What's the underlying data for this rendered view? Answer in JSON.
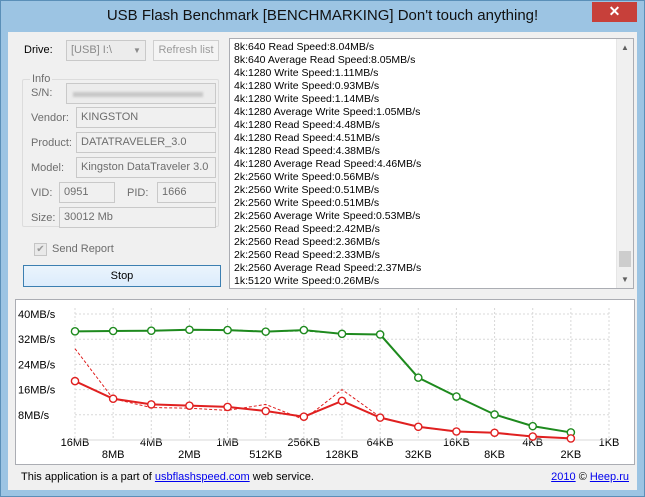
{
  "window": {
    "title": "USB Flash Benchmark [BENCHMARKING] Don't touch anything!",
    "close_glyph": "✕"
  },
  "drive": {
    "label": "Drive:",
    "value": "[USB] I:\\",
    "refresh_label": "Refresh list"
  },
  "info": {
    "group_title": "Info",
    "sn_label": "S/N:",
    "vendor_label": "Vendor:",
    "vendor": "KINGSTON",
    "product_label": "Product:",
    "product": "DATATRAVELER_3.0",
    "model_label": "Model:",
    "model": "Kingston DataTraveler 3.0",
    "vid_label": "VID:",
    "vid": "0951",
    "pid_label": "PID:",
    "pid": "1666",
    "size_label": "Size:",
    "size": "30012 Mb"
  },
  "send_report": {
    "label": "Send Report",
    "checked": true
  },
  "stop_label": "Stop",
  "log": [
    "8k:640 Read Speed:8.04MB/s",
    "8k:640 Average Read Speed:8.05MB/s",
    "4k:1280 Write Speed:1.11MB/s",
    "4k:1280 Write Speed:0.93MB/s",
    "4k:1280 Write Speed:1.14MB/s",
    "4k:1280 Average Write Speed:1.05MB/s",
    "4k:1280 Read Speed:4.48MB/s",
    "4k:1280 Read Speed:4.51MB/s",
    "4k:1280 Read Speed:4.38MB/s",
    "4k:1280 Average Read Speed:4.46MB/s",
    "2k:2560 Write Speed:0.56MB/s",
    "2k:2560 Write Speed:0.51MB/s",
    "2k:2560 Write Speed:0.51MB/s",
    "2k:2560 Average Write Speed:0.53MB/s",
    "2k:2560 Read Speed:2.42MB/s",
    "2k:2560 Read Speed:2.36MB/s",
    "2k:2560 Read Speed:2.33MB/s",
    "2k:2560 Average Read Speed:2.37MB/s",
    "1k:5120 Write Speed:0.26MB/s"
  ],
  "chart_data": {
    "type": "line",
    "categories": [
      "16MB",
      "8MB",
      "4MB",
      "2MB",
      "1MB",
      "512KB",
      "256KB",
      "128KB",
      "64KB",
      "32KB",
      "16KB",
      "8KB",
      "4KB",
      "2KB",
      "1KB"
    ],
    "y_ticks": [
      "8MB/s",
      "16MB/s",
      "24MB/s",
      "32MB/s",
      "40MB/s"
    ],
    "ylim": [
      0,
      40
    ],
    "grid": true,
    "series": [
      {
        "key": "read_avg",
        "color": "#1e8a1e",
        "style": "solid-markers",
        "values": [
          34.5,
          34.6,
          34.7,
          35.0,
          34.9,
          34.4,
          34.9,
          33.7,
          33.5,
          19.8,
          13.8,
          8.1,
          4.4,
          2.4,
          null
        ]
      },
      {
        "key": "read_samples",
        "color": "#2a9a2a",
        "style": "dashed",
        "values": [
          34.5,
          34.6,
          34.8,
          34.9,
          35.0,
          34.5,
          34.6,
          33.8,
          33.4,
          19.8,
          13.8,
          8.1,
          4.5,
          2.4,
          null
        ]
      },
      {
        "key": "write_avg",
        "color": "#e02020",
        "style": "solid-markers",
        "values": [
          18.7,
          13.1,
          11.3,
          10.9,
          10.5,
          9.2,
          7.4,
          12.4,
          7.1,
          4.2,
          2.7,
          2.3,
          1.1,
          0.5,
          null
        ]
      },
      {
        "key": "write_samples",
        "color": "#e02020",
        "style": "dashed",
        "values": [
          29.0,
          13.1,
          10.3,
          10.1,
          9.4,
          11.3,
          6.5,
          16.0,
          7.3,
          4.1,
          2.6,
          2.3,
          1.0,
          0.5,
          null
        ]
      }
    ]
  },
  "footer": {
    "text_before": "This application is a part of ",
    "link": "usbflashspeed.com",
    "text_after": " web service.",
    "copyright_year": "2010",
    "copyright_sep": " © ",
    "copyright_link": "Heep.ru"
  }
}
